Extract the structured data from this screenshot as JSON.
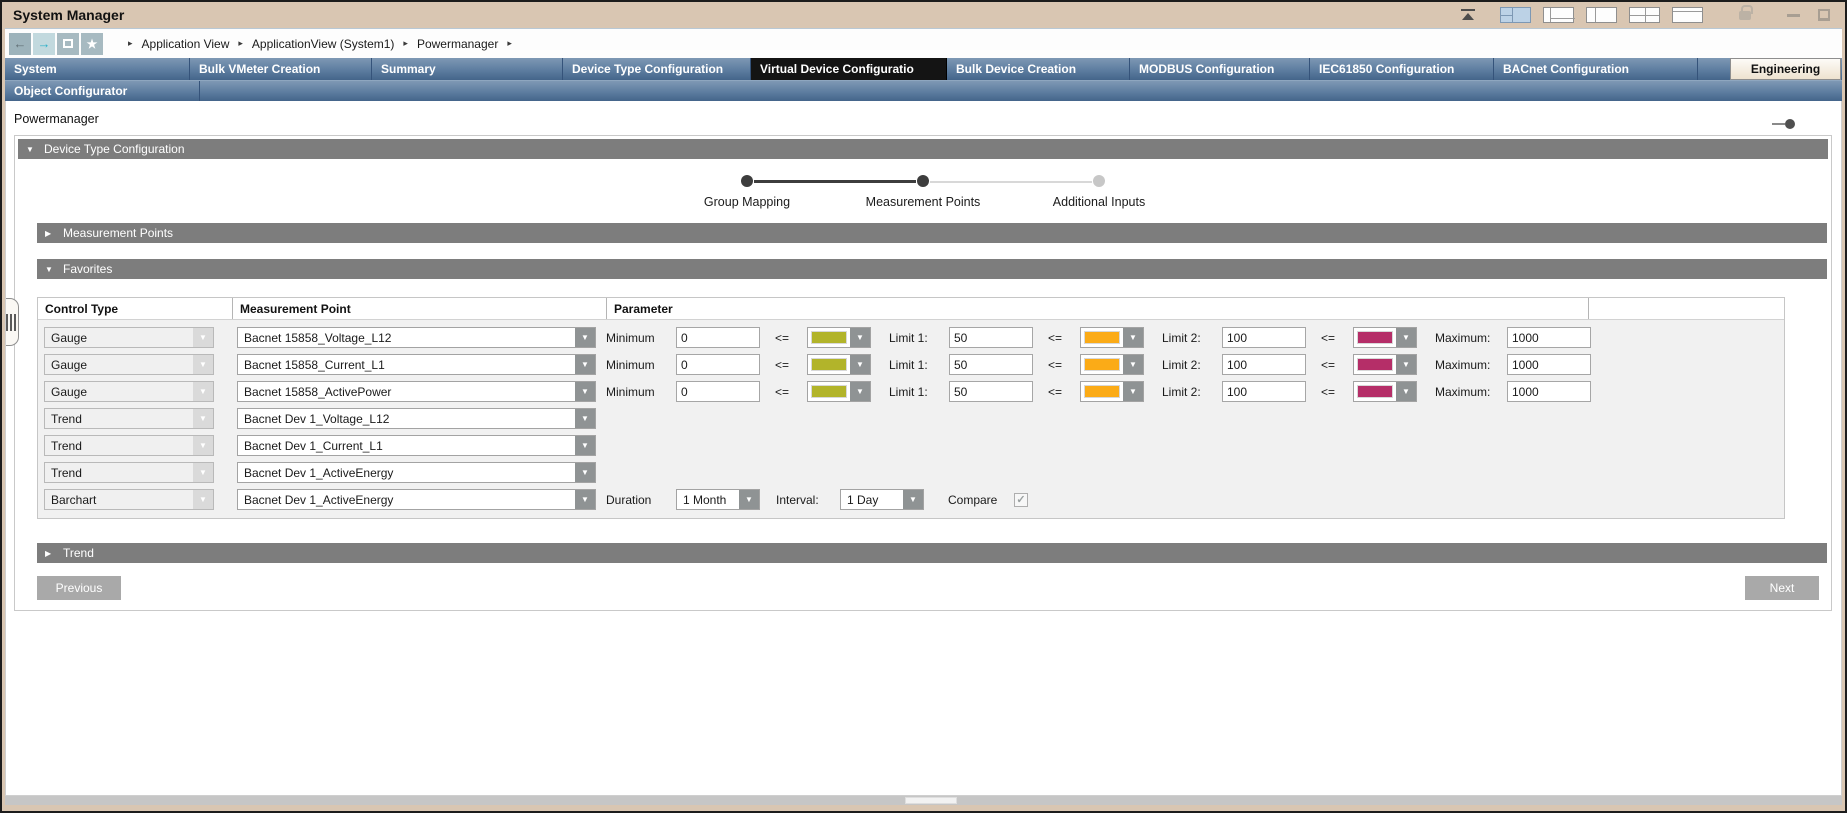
{
  "window": {
    "title": "System Manager"
  },
  "theme": {
    "frame_tan": "#d9c6b2",
    "tab_selected_bg": "#141414",
    "section_header_bg": "#7d7d7d",
    "button_bg": "#a9a9a9"
  },
  "titlebar": {
    "icons": [
      "collapse-top-icon",
      "layout-split-active-icon",
      "layout-bottom-panel-icon",
      "layout-left-panel-icon",
      "layout-grid-icon",
      "layout-single-pane-icon",
      "lock-icon",
      "minimize-icon",
      "restore-icon"
    ]
  },
  "breadcrumb": {
    "items": [
      "Application View",
      "ApplicationView (System1)",
      "Powermanager"
    ]
  },
  "nav_tabs": {
    "row1": [
      {
        "label": "System",
        "selected": false
      },
      {
        "label": "Bulk VMeter Creation",
        "selected": false
      },
      {
        "label": "Summary",
        "selected": false
      },
      {
        "label": "Device Type Configuration",
        "selected": false
      },
      {
        "label": "Virtual Device Configuratio",
        "selected": true
      },
      {
        "label": "Bulk Device Creation",
        "selected": false
      },
      {
        "label": "MODBUS Configuration",
        "selected": false
      },
      {
        "label": "IEC61850 Configuration",
        "selected": false
      },
      {
        "label": "BACnet Configuration",
        "selected": false
      }
    ],
    "engineering": "Engineering",
    "row2": [
      {
        "label": "Object Configurator",
        "selected": true
      }
    ]
  },
  "page": {
    "root_label": "Powermanager"
  },
  "sections": {
    "device_type_configuration": "Device Type Configuration",
    "measurement_points": "Measurement Points",
    "favorites": "Favorites",
    "trend": "Trend"
  },
  "stepper": {
    "steps": [
      {
        "label": "Group Mapping",
        "state": "done"
      },
      {
        "label": "Measurement Points",
        "state": "done"
      },
      {
        "label": "Additional Inputs",
        "state": "pending"
      }
    ]
  },
  "favorites_table": {
    "headers": [
      "Control Type",
      "Measurement Point",
      "Parameter"
    ],
    "param_labels": {
      "minimum": "Minimum",
      "lte": "<=",
      "limit1": "Limit 1:",
      "limit2": "Limit 2:",
      "maximum": "Maximum:",
      "duration": "Duration",
      "interval": "Interval:",
      "compare": "Compare"
    },
    "limit_colors": {
      "ok": "#b2b42a",
      "warning": "#fbab17",
      "alarm": "#b52e68"
    },
    "rows": [
      {
        "control_type": "Gauge",
        "measurement_point": "Bacnet 15858_Voltage_L12",
        "param_type": "gauge",
        "minimum": "0",
        "limit1": "50",
        "limit2": "100",
        "maximum": "1000"
      },
      {
        "control_type": "Gauge",
        "measurement_point": "Bacnet 15858_Current_L1",
        "param_type": "gauge",
        "minimum": "0",
        "limit1": "50",
        "limit2": "100",
        "maximum": "1000"
      },
      {
        "control_type": "Gauge",
        "measurement_point": "Bacnet 15858_ActivePower",
        "param_type": "gauge",
        "minimum": "0",
        "limit1": "50",
        "limit2": "100",
        "maximum": "1000"
      },
      {
        "control_type": "Trend",
        "measurement_point": "Bacnet Dev 1_Voltage_L12",
        "param_type": "none"
      },
      {
        "control_type": "Trend",
        "measurement_point": "Bacnet Dev 1_Current_L1",
        "param_type": "none"
      },
      {
        "control_type": "Trend",
        "measurement_point": "Bacnet Dev 1_ActiveEnergy",
        "param_type": "none"
      },
      {
        "control_type": "Barchart",
        "measurement_point": "Bacnet Dev 1_ActiveEnergy",
        "param_type": "barchart",
        "duration": "1 Month",
        "interval": "1 Day",
        "compare_checked": true
      }
    ]
  },
  "footer_buttons": {
    "previous": "Previous",
    "next": "Next"
  }
}
